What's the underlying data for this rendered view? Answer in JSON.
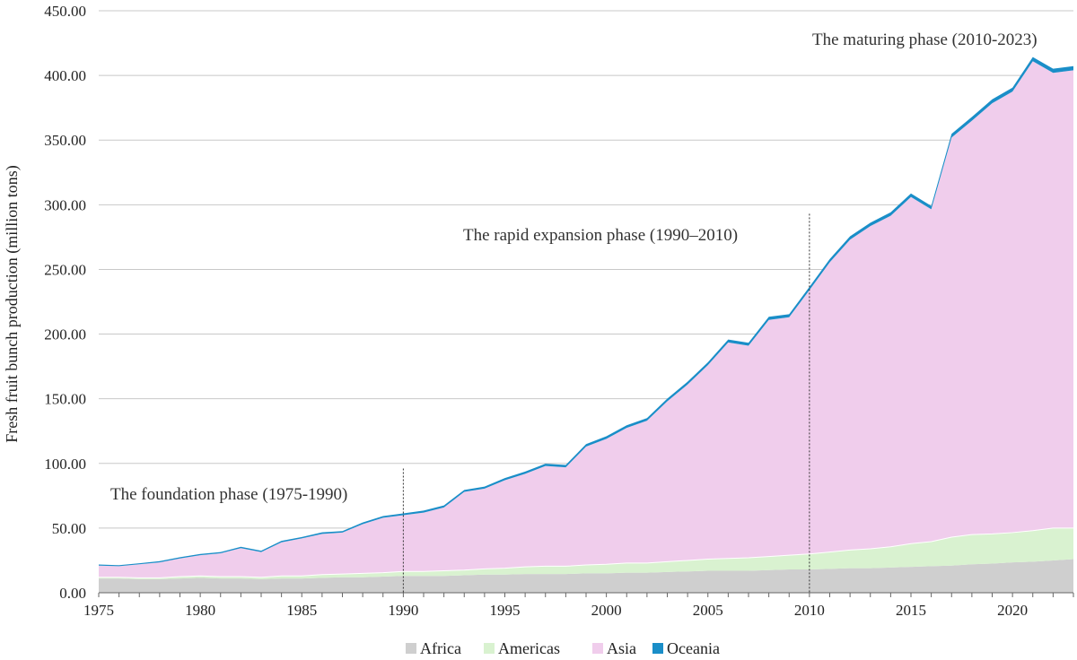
{
  "chart_data": {
    "type": "area",
    "stacked": true,
    "title": "",
    "xlabel": "",
    "ylabel": "Fresh fruit bunch production (million tons)",
    "xlim": [
      1975,
      2023
    ],
    "ylim": [
      0,
      450
    ],
    "y_ticks": [
      "0.00",
      "50.00",
      "100.00",
      "150.00",
      "200.00",
      "250.00",
      "300.00",
      "350.00",
      "400.00",
      "450.00"
    ],
    "x_ticks": [
      "1975",
      "1980",
      "1985",
      "1990",
      "1995",
      "2000",
      "2005",
      "2010",
      "2015",
      "2020"
    ],
    "grid": "horizontal",
    "legend_position": "bottom",
    "x": [
      1975,
      1976,
      1977,
      1978,
      1979,
      1980,
      1981,
      1982,
      1983,
      1984,
      1985,
      1986,
      1987,
      1988,
      1989,
      1990,
      1991,
      1992,
      1993,
      1994,
      1995,
      1996,
      1997,
      1998,
      1999,
      2000,
      2001,
      2002,
      2003,
      2004,
      2005,
      2006,
      2007,
      2008,
      2009,
      2010,
      2011,
      2012,
      2013,
      2014,
      2015,
      2016,
      2017,
      2018,
      2019,
      2020,
      2021,
      2022,
      2023
    ],
    "series": [
      {
        "name": "Africa",
        "color": "#cfcfcf",
        "values": [
          11,
          11,
          10.5,
          10.5,
          11,
          11.5,
          11,
          11,
          10.5,
          11,
          11,
          11.5,
          12,
          12,
          12.5,
          13,
          13,
          13,
          13.5,
          14,
          14,
          14.5,
          14.5,
          14.5,
          15,
          15,
          15.5,
          15.5,
          16,
          16.5,
          17,
          17,
          17,
          17.5,
          18,
          18,
          18.5,
          19,
          19,
          19.5,
          20,
          20.5,
          21,
          22,
          22.5,
          23.5,
          24,
          25,
          26
        ]
      },
      {
        "name": "Americas",
        "color": "#d9f2d0",
        "values": [
          1,
          1,
          1,
          1,
          1.5,
          1.5,
          1.5,
          1.5,
          1.5,
          2,
          2,
          2.5,
          2.5,
          3,
          3,
          3.5,
          3.5,
          4,
          4,
          4.5,
          5,
          5.5,
          6,
          6,
          6.5,
          7,
          7.5,
          7.5,
          8,
          8.5,
          9,
          9.5,
          10,
          10.5,
          11,
          12,
          13,
          14,
          15,
          16,
          18,
          19,
          22,
          23,
          23,
          23,
          24,
          25,
          24
        ]
      },
      {
        "name": "Asia",
        "color": "#f0cdec",
        "values": [
          9,
          8.5,
          10.5,
          12,
          14,
          16,
          18,
          22,
          19.5,
          26,
          29,
          31.5,
          32,
          38,
          42.5,
          43.5,
          45.5,
          49,
          60.5,
          62,
          68,
          72,
          77.5,
          76.5,
          91.5,
          97,
          104.5,
          110,
          124,
          136,
          150,
          167,
          164,
          183,
          184,
          204,
          224,
          240,
          249.5,
          256,
          268,
          257,
          309,
          320,
          333,
          341,
          363,
          352,
          354
        ]
      },
      {
        "name": "Oceania",
        "color": "#1a8ec8",
        "values": [
          0.8,
          0.8,
          0.8,
          0.9,
          1,
          1,
          1,
          1,
          1,
          1.1,
          1.1,
          1.2,
          1.2,
          1.3,
          1.3,
          1.4,
          1.5,
          1.5,
          1.5,
          1.6,
          1.7,
          1.7,
          1.8,
          1.8,
          1.9,
          2,
          2,
          2,
          2.1,
          2.2,
          2.2,
          2.3,
          2.3,
          2.4,
          2.4,
          2.5,
          2.5,
          2.6,
          2.6,
          2.7,
          2.7,
          2.6,
          2.8,
          2.9,
          3,
          3,
          3.2,
          3.2,
          3.2
        ]
      }
    ],
    "annotations": [
      {
        "text": "The foundation phase (1975-1990)",
        "divider_year": 1990,
        "divider_top": 96
      },
      {
        "text": "The rapid expansion phase (1990–2010)",
        "divider_year": 2010,
        "divider_top": 293
      },
      {
        "text": "The maturing phase (2010-2023)"
      }
    ]
  }
}
